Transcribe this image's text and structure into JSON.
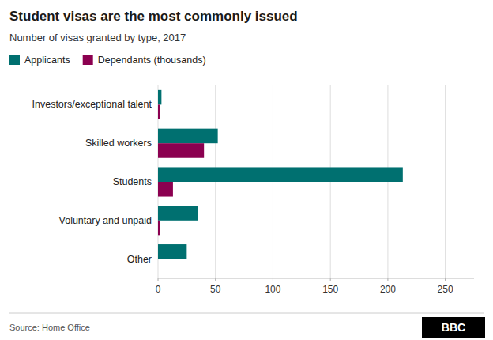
{
  "chart_data": {
    "type": "bar",
    "orientation": "horizontal",
    "title": "Student visas are the most commonly issued",
    "subtitle": "Number of visas granted by type, 2017",
    "categories": [
      "Other",
      "Voluntary and unpaid",
      "Students",
      "Skilled workers",
      "Investors/exceptional talent"
    ],
    "series": [
      {
        "name": "Applicants",
        "color": "#007070",
        "values": [
          25,
          35,
          213,
          52,
          3
        ]
      },
      {
        "name": "Dependants (thousands)",
        "color": "#8B0050",
        "values": [
          0,
          2,
          13,
          40,
          2
        ]
      }
    ],
    "xlim": [
      0,
      275
    ],
    "xticks": [
      0,
      50,
      100,
      150,
      200,
      250
    ],
    "grid": true,
    "legend": "upper left",
    "source": "Source: Home Office",
    "annotations": [
      "BBC"
    ]
  }
}
